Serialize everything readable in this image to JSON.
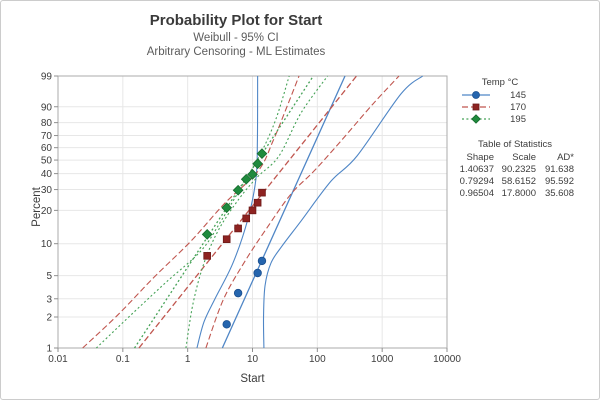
{
  "header": {
    "title": "Probability Plot for Start",
    "subtitle1": "Weibull - 95% CI",
    "subtitle2": "Arbitrary Censoring - ML Estimates"
  },
  "axes": {
    "xlabel": "Start",
    "ylabel": "Percent",
    "x_tick_labels": [
      "0.01",
      "0.1",
      "1",
      "10",
      "100",
      "1000",
      "10000"
    ],
    "x_tick_values": [
      0.01,
      0.1,
      1,
      10,
      100,
      1000,
      10000
    ],
    "y_tick_values": [
      1,
      2,
      3,
      5,
      10,
      20,
      30,
      40,
      50,
      60,
      70,
      80,
      90,
      99
    ],
    "x_range": [
      0.01,
      10000
    ],
    "y_range_percent": [
      1,
      99
    ],
    "grid": "on"
  },
  "legend": {
    "title": "Temp °C",
    "items": [
      {
        "label": "145",
        "marker": "circle",
        "line_style": "solid"
      },
      {
        "label": "170",
        "marker": "square",
        "line_style": "dash"
      },
      {
        "label": "195",
        "marker": "diamond",
        "line_style": "shortdash"
      }
    ]
  },
  "stats_table": {
    "title": "Table of Statistics",
    "headers": [
      "Shape",
      "Scale",
      "AD*"
    ],
    "rows": [
      [
        "1.40637",
        "90.2325",
        "91.638"
      ],
      [
        "0.79294",
        "58.6152",
        "95.592"
      ],
      [
        "0.96504",
        "17.8000",
        "35.608"
      ]
    ]
  },
  "colors": {
    "grid": "#e7e7e7",
    "spine": "#ababab",
    "tick": "#8f8f8f",
    "tick_text": "#3c3c3c",
    "blue_line": "#4f86c6",
    "blue_marker": "#2565ae",
    "blue_marker_edge": "#1b4f8f",
    "red_line": "#c0564f",
    "red_marker": "#8e2321",
    "red_marker_edge": "#6d1a19",
    "green_line": "#46a257",
    "green_marker": "#1f8a3d",
    "green_marker_edge": "#166b2e"
  },
  "chart_data": {
    "type": "scatter",
    "title": "Probability Plot for Start",
    "xlabel": "Start",
    "ylabel": "Percent",
    "x_scale": "log10",
    "y_scale": "weibull-probability",
    "series": [
      {
        "name": "145",
        "marker": "circle",
        "dash": "",
        "weibull_shape": 1.40637,
        "weibull_scale": 90.2325,
        "ad_star": 91.638,
        "points": [
          [
            4,
            1.7
          ],
          [
            6,
            3.4
          ],
          [
            12,
            5.3
          ],
          [
            14,
            6.9
          ]
        ],
        "ci_left": [
          [
            1.39,
            1.0
          ],
          [
            1.79,
            1.8
          ],
          [
            2.64,
            3.0
          ],
          [
            5.0,
            6.6
          ],
          [
            8.5,
            16.8
          ],
          [
            11.3,
            36.4
          ],
          [
            11.9,
            65.5
          ],
          [
            12.0,
            99.0
          ]
        ],
        "ci_right": [
          [
            15.0,
            1.0
          ],
          [
            14.8,
            2.0
          ],
          [
            15.6,
            4.0
          ],
          [
            19.3,
            6.6
          ],
          [
            28.5,
            9.5
          ],
          [
            56.0,
            16.1
          ],
          [
            163.0,
            35.1
          ],
          [
            409.0,
            53.2
          ],
          [
            1950.0,
            95.4
          ],
          [
            4220.0,
            99.0
          ]
        ]
      },
      {
        "name": "170",
        "marker": "square",
        "dash": "6,3",
        "weibull_shape": 0.79294,
        "weibull_scale": 58.6152,
        "ad_star": 95.592,
        "points": [
          [
            2,
            7.7
          ],
          [
            4,
            11.0
          ],
          [
            6,
            13.8
          ],
          [
            8,
            17.0
          ],
          [
            10,
            20.0
          ],
          [
            12,
            23.3
          ],
          [
            14,
            28.3
          ]
        ],
        "ci_left": [
          [
            0.024,
            1.0
          ],
          [
            0.084,
            2.1
          ],
          [
            0.3,
            4.8
          ],
          [
            1.13,
            10.6
          ],
          [
            3.64,
            22.7
          ],
          [
            12.2,
            41.8
          ],
          [
            20.7,
            65.5
          ],
          [
            32.9,
            88.8
          ],
          [
            52.2,
            99.0
          ]
        ],
        "ci_right": [
          [
            1.91,
            1.0
          ],
          [
            3.51,
            2.9
          ],
          [
            7.37,
            6.6
          ],
          [
            16.2,
            13.6
          ],
          [
            39.3,
            27.6
          ],
          [
            88.9,
            41.8
          ],
          [
            231.0,
            65.5
          ],
          [
            721.0,
            91.4
          ],
          [
            1820.0,
            99.0
          ]
        ]
      },
      {
        "name": "195",
        "marker": "diamond",
        "dash": "2,2.4",
        "weibull_shape": 0.96504,
        "weibull_scale": 17.8,
        "ad_star": 35.608,
        "points": [
          [
            2,
            12.2
          ],
          [
            4,
            21.1
          ],
          [
            6,
            29.6
          ],
          [
            8,
            36.2
          ],
          [
            10,
            39.5
          ],
          [
            12,
            47.2
          ],
          [
            14,
            55.1
          ]
        ],
        "ci_left": [
          [
            0.039,
            1.0
          ],
          [
            0.134,
            2.1
          ],
          [
            0.46,
            4.3
          ],
          [
            1.61,
            8.6
          ],
          [
            3.27,
            16.1
          ],
          [
            7.13,
            33.2
          ],
          [
            13.5,
            55.6
          ],
          [
            23.0,
            82.6
          ],
          [
            36.8,
            99.0
          ]
        ],
        "ci_right": [
          [
            0.94,
            1.0
          ],
          [
            1.21,
            2.7
          ],
          [
            1.79,
            6.6
          ],
          [
            3.04,
            13.6
          ],
          [
            6.19,
            25.1
          ],
          [
            11.9,
            37.7
          ],
          [
            25.6,
            53.2
          ],
          [
            56.0,
            86.5
          ],
          [
            144.0,
            99.0
          ]
        ]
      }
    ]
  }
}
